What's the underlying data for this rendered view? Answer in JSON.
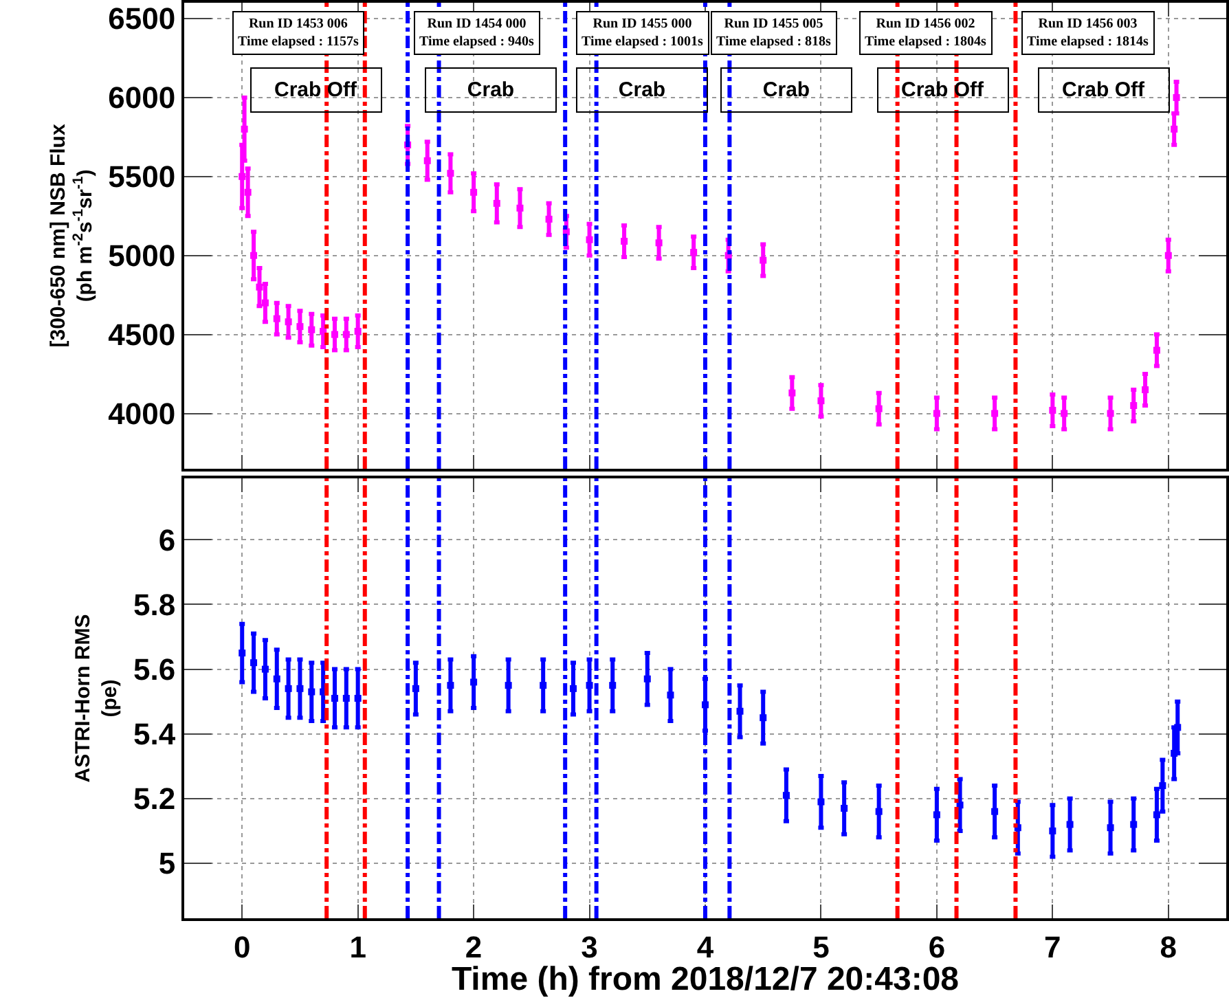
{
  "chart_data": [
    {
      "type": "scatter",
      "ylabel": "[300-650 nm] NSB Flux\n(ph m$^{-2}$s$^{-1}$sr$^{-1}$)",
      "tick_labels": "y",
      "grid": true,
      "marker": "square",
      "xlim": [
        -0.5,
        8.5
      ],
      "xticks": [
        0,
        1,
        2,
        3,
        4,
        5,
        6,
        7,
        8
      ],
      "ylim": [
        3650,
        6600
      ],
      "yticks": [
        4000,
        4500,
        5000,
        5500,
        6000,
        6500
      ],
      "series": [
        {
          "color": "#ff00ff",
          "x": [
            0.0,
            0.02,
            0.05,
            0.1,
            0.15,
            0.2,
            0.3,
            0.4,
            0.5,
            0.6,
            0.7,
            0.8,
            0.9,
            1.0,
            1.43,
            1.6,
            1.8,
            2.0,
            2.2,
            2.4,
            2.65,
            2.8,
            3.0,
            3.3,
            3.6,
            3.9,
            4.2,
            4.5,
            4.75,
            5.0,
            5.5,
            6.0,
            6.5,
            7.0,
            7.1,
            7.5,
            7.7,
            7.8,
            7.9,
            8.0,
            8.05,
            8.07
          ],
          "values": [
            5500,
            5800,
            5400,
            5000,
            4800,
            4700,
            4600,
            4580,
            4550,
            4530,
            4520,
            4500,
            4500,
            4520,
            5700,
            5600,
            5520,
            5400,
            5330,
            5300,
            5230,
            5150,
            5100,
            5090,
            5080,
            5020,
            5000,
            4970,
            4130,
            4080,
            4030,
            4000,
            4000,
            4020,
            4000,
            4000,
            4050,
            4150,
            4400,
            5000,
            5800,
            6000
          ],
          "errors": [
            200,
            200,
            150,
            150,
            120,
            120,
            100,
            100,
            100,
            100,
            100,
            100,
            100,
            100,
            120,
            120,
            120,
            120,
            120,
            120,
            100,
            100,
            100,
            100,
            100,
            100,
            100,
            100,
            100,
            100,
            100,
            100,
            100,
            100,
            100,
            100,
            100,
            100,
            100,
            100,
            100,
            100
          ]
        }
      ],
      "ref_lines": [
        {
          "axis": "x",
          "value": 0.73,
          "color": "#ff0000",
          "line_style": "dashed"
        },
        {
          "axis": "x",
          "value": 1.06,
          "color": "#ff0000",
          "line_style": "dashed"
        },
        {
          "axis": "x",
          "value": 1.43,
          "color": "#0000ff",
          "line_style": "dashed"
        },
        {
          "axis": "x",
          "value": 1.7,
          "color": "#0000ff",
          "line_style": "dashed"
        },
        {
          "axis": "x",
          "value": 2.79,
          "color": "#0000ff",
          "line_style": "dashed"
        },
        {
          "axis": "x",
          "value": 3.06,
          "color": "#0000ff",
          "line_style": "dashed"
        },
        {
          "axis": "x",
          "value": 4.0,
          "color": "#0000ff",
          "line_style": "dashed"
        },
        {
          "axis": "x",
          "value": 4.21,
          "color": "#0000ff",
          "line_style": "dashed"
        },
        {
          "axis": "x",
          "value": 5.66,
          "color": "#ff0000",
          "line_style": "dashed"
        },
        {
          "axis": "x",
          "value": 6.17,
          "color": "#ff0000",
          "line_style": "dashed"
        },
        {
          "axis": "x",
          "value": 6.68,
          "color": "#ff0000",
          "line_style": "dashed"
        }
      ],
      "annotations": [
        "Run ID 1453 006\nTime elapsed : 1157s",
        "Crab Off",
        "Run ID 1454 000\nTime elapsed : 940s",
        "Crab",
        "Run ID 1455 000\nTime elapsed : 1001s",
        "Crab",
        "Run ID 1455 005\nTime elapsed : 818s",
        "Crab",
        "Run ID 1456 002\nTime elapsed : 1804s",
        "Crab Off",
        "Run ID 1456 003\nTime elapsed : 1814s",
        "Crab Off"
      ]
    },
    {
      "type": "scatter",
      "ylabel": "ASTRI-Horn RMS\n(pe)",
      "xlabel": "Time (h) from 2018/12/7 20:43:08",
      "grid": true,
      "marker": "square",
      "xlim": [
        -0.5,
        8.5
      ],
      "xticks": [
        0,
        1,
        2,
        3,
        4,
        5,
        6,
        7,
        8
      ],
      "ylim": [
        4.83,
        6.19
      ],
      "yticks": [
        5,
        5.2,
        5.4,
        5.6,
        5.8,
        6
      ],
      "series": [
        {
          "color": "#0000ff",
          "x": [
            0.0,
            0.1,
            0.2,
            0.3,
            0.4,
            0.5,
            0.6,
            0.7,
            0.8,
            0.9,
            1.0,
            1.5,
            1.8,
            2.0,
            2.3,
            2.6,
            2.86,
            3.0,
            3.2,
            3.5,
            3.7,
            4.0,
            4.3,
            4.5,
            4.7,
            5.0,
            5.2,
            5.5,
            6.0,
            6.2,
            6.5,
            6.7,
            7.0,
            7.15,
            7.5,
            7.7,
            7.9,
            7.95,
            8.05,
            8.08
          ],
          "values": [
            5.65,
            5.62,
            5.6,
            5.57,
            5.54,
            5.54,
            5.53,
            5.53,
            5.51,
            5.51,
            5.51,
            5.54,
            5.55,
            5.56,
            5.55,
            5.55,
            5.54,
            5.55,
            5.55,
            5.57,
            5.52,
            5.49,
            5.47,
            5.45,
            5.21,
            5.19,
            5.17,
            5.16,
            5.15,
            5.18,
            5.16,
            5.11,
            5.1,
            5.12,
            5.11,
            5.12,
            5.15,
            5.24,
            5.34,
            5.42
          ],
          "errors": [
            0.09,
            0.09,
            0.09,
            0.09,
            0.09,
            0.09,
            0.09,
            0.09,
            0.09,
            0.09,
            0.09,
            0.08,
            0.08,
            0.08,
            0.08,
            0.08,
            0.08,
            0.08,
            0.08,
            0.08,
            0.08,
            0.08,
            0.08,
            0.08,
            0.08,
            0.08,
            0.08,
            0.08,
            0.08,
            0.08,
            0.08,
            0.08,
            0.08,
            0.08,
            0.08,
            0.08,
            0.08,
            0.08,
            0.08,
            0.08
          ]
        }
      ],
      "ref_lines": [
        {
          "axis": "x",
          "value": 0.73,
          "color": "#ff0000",
          "line_style": "dashed"
        },
        {
          "axis": "x",
          "value": 1.06,
          "color": "#ff0000",
          "line_style": "dashed"
        },
        {
          "axis": "x",
          "value": 1.43,
          "color": "#0000ff",
          "line_style": "dashed"
        },
        {
          "axis": "x",
          "value": 1.7,
          "color": "#0000ff",
          "line_style": "dashed"
        },
        {
          "axis": "x",
          "value": 2.79,
          "color": "#0000ff",
          "line_style": "dashed"
        },
        {
          "axis": "x",
          "value": 3.06,
          "color": "#0000ff",
          "line_style": "dashed"
        },
        {
          "axis": "x",
          "value": 4.0,
          "color": "#0000ff",
          "line_style": "dashed"
        },
        {
          "axis": "x",
          "value": 4.21,
          "color": "#0000ff",
          "line_style": "dashed"
        },
        {
          "axis": "x",
          "value": 5.66,
          "color": "#ff0000",
          "line_style": "dashed"
        },
        {
          "axis": "x",
          "value": 6.17,
          "color": "#ff0000",
          "line_style": "dashed"
        },
        {
          "axis": "x",
          "value": 6.68,
          "color": "#ff0000",
          "line_style": "dashed"
        }
      ]
    }
  ]
}
